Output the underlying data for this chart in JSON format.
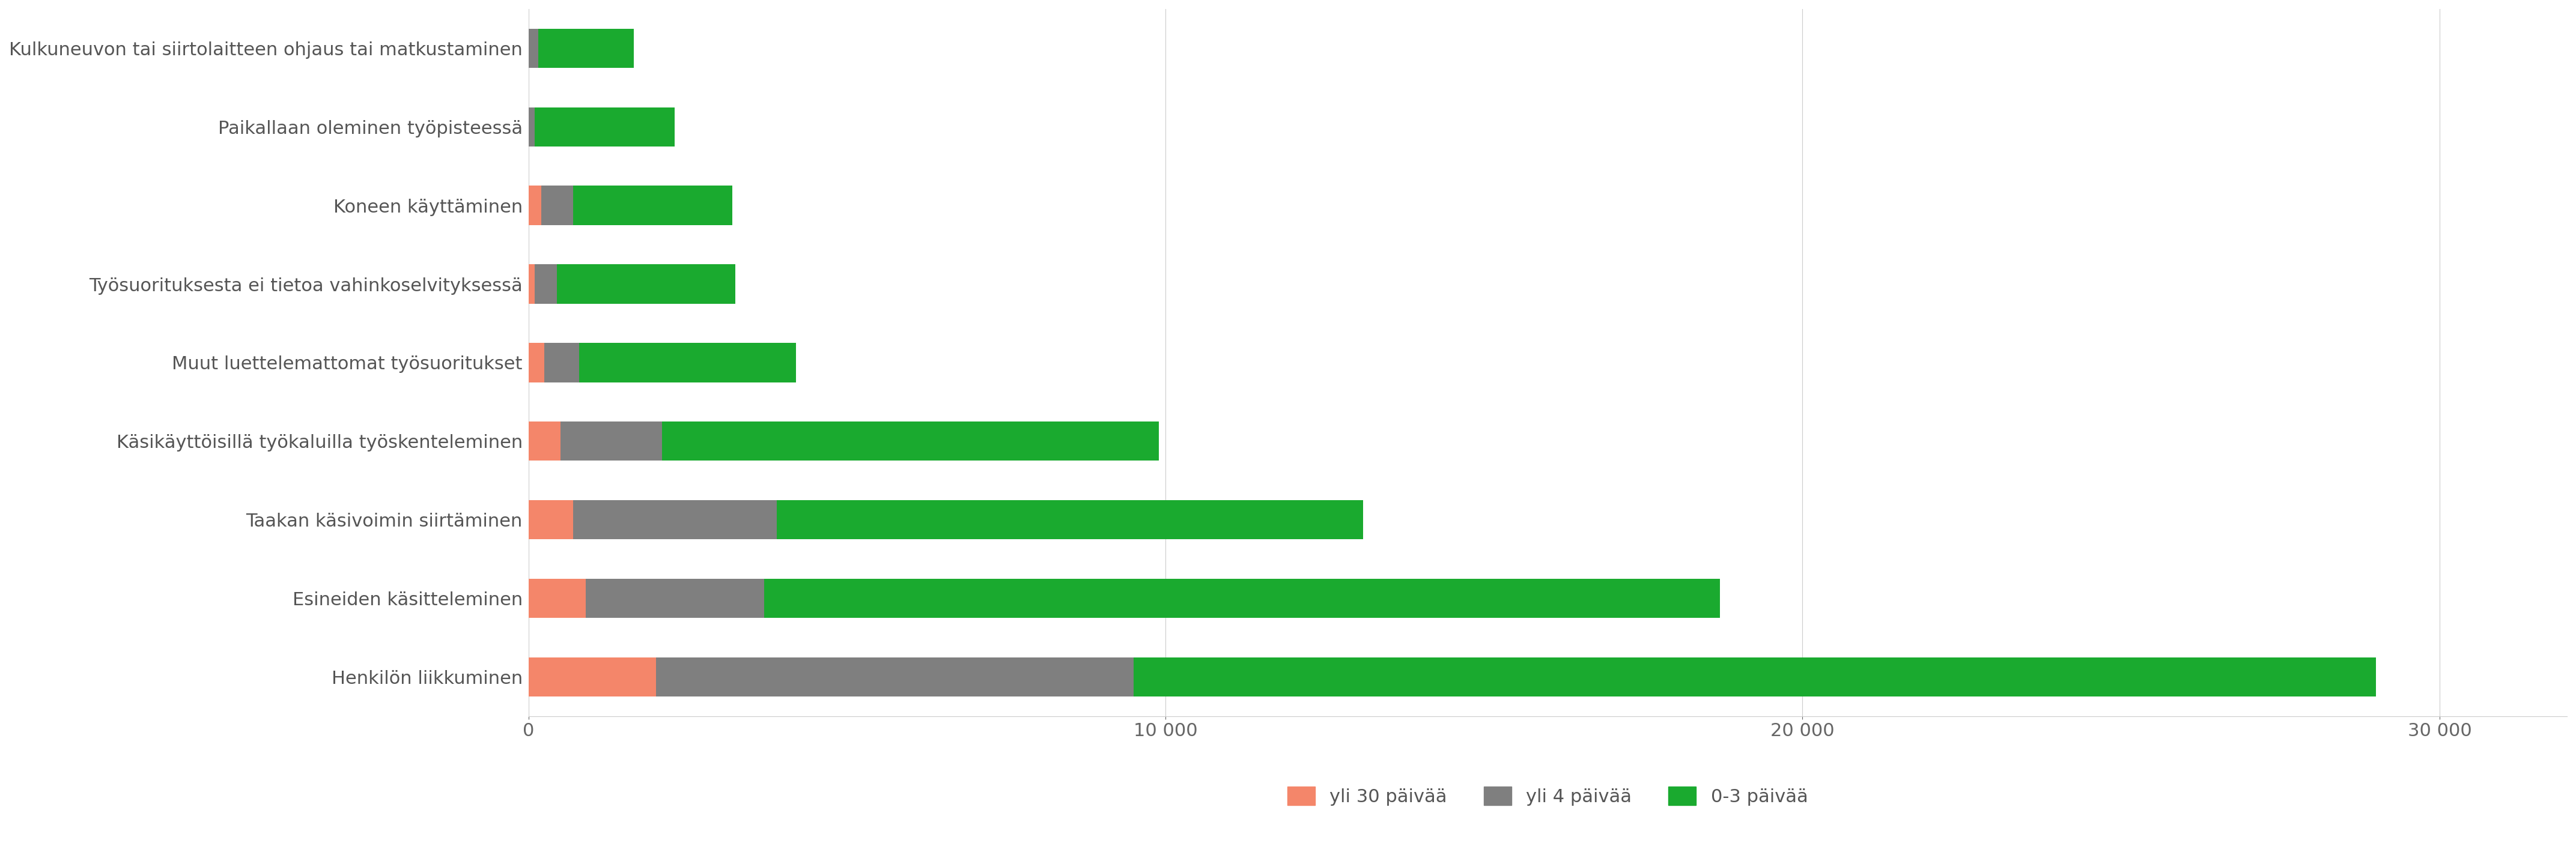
{
  "categories": [
    "Kulkuneuvon tai siirtolaitteen ohjaus tai matkustaminen",
    "Paikallaan oleminen työpisteessä",
    "Koneen käyttäminen",
    "Työsuorituksesta ei tietoa vahinkoselvityksessä",
    "Muut luettelemattomat työsuoritukset",
    "Käsikäyttöisillä työkaluilla työskenteleminen",
    "Taakan käsivoimin siirtäminen",
    "Esineiden käsitteleminen",
    "Henkilön liikkuminen"
  ],
  "yli30": [
    0,
    0,
    200,
    100,
    250,
    500,
    700,
    900,
    2000
  ],
  "yli4": [
    150,
    100,
    500,
    350,
    550,
    1600,
    3200,
    2800,
    7500
  ],
  "p03": [
    1500,
    2200,
    2500,
    2800,
    3400,
    7800,
    9200,
    15000,
    19500
  ],
  "color_yli30": "#f4866a",
  "color_yli4": "#7f7f7f",
  "color_p03": "#1aaa2f",
  "background_color": "#ffffff",
  "label_yli30": "yli 30 päivää",
  "label_yli4": "yli 4 päivää",
  "label_p03": "0-3 päivää",
  "tick_color": "#666666",
  "text_color": "#555555",
  "xlim": 32000,
  "xticks": [
    0,
    10000,
    20000,
    30000
  ],
  "xticklabels": [
    "0",
    "10 000",
    "20 000",
    "30 000"
  ]
}
